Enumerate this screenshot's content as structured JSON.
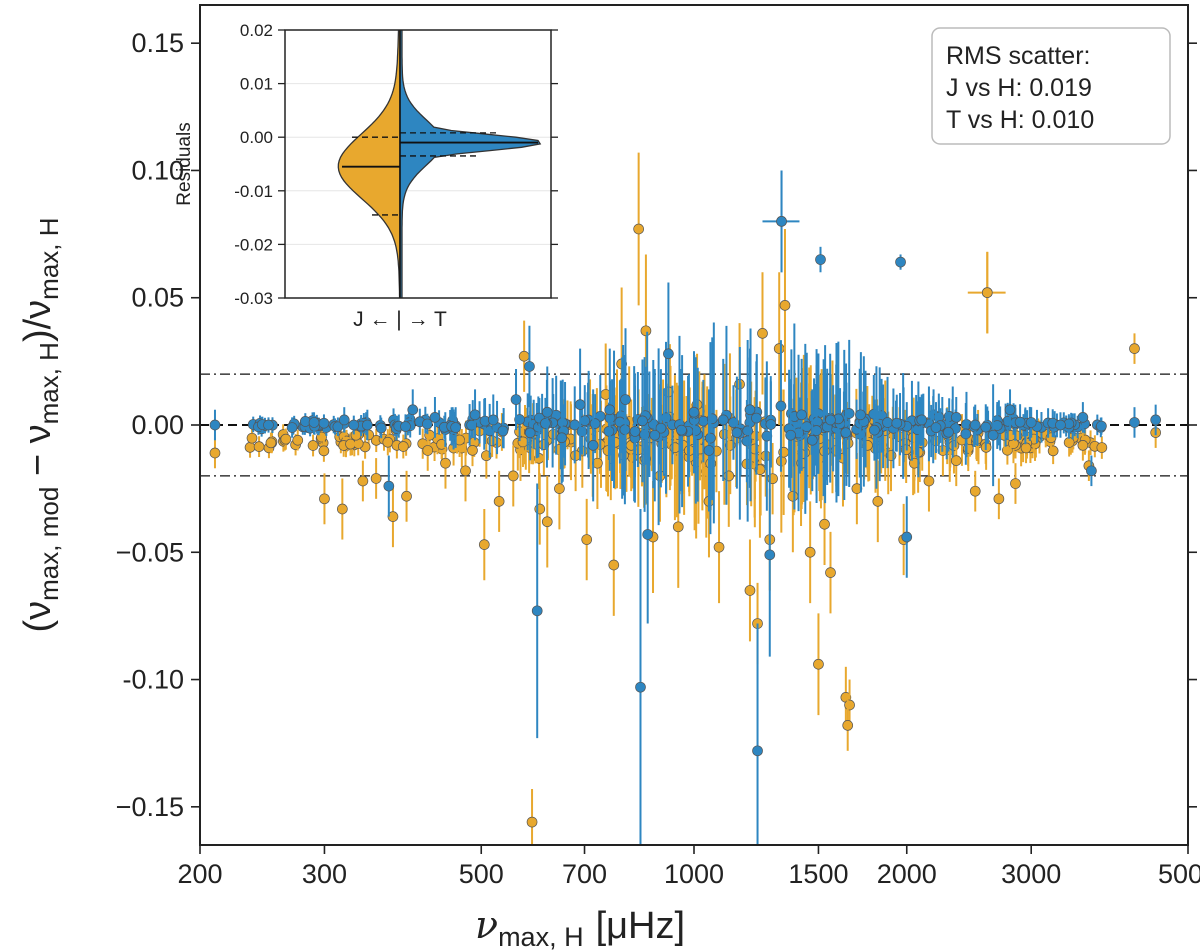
{
  "chart_data": [
    {
      "type": "scatter",
      "xlabel_symbol": "ν",
      "xlabel_sub": "max, H",
      "xlabel_unit": "[μHz]",
      "ylabel_open": "(ν",
      "ylabel_sub1": "max, mod",
      "ylabel_mid": " − ν",
      "ylabel_sub2": "max, H",
      "ylabel_close": ")/ν",
      "ylabel_sub3": "max, H",
      "xscale": "log",
      "xlim": [
        200,
        5000
      ],
      "ylim": [
        -0.165,
        0.165
      ],
      "xticks": [
        200,
        300,
        500,
        700,
        1000,
        1500,
        2000,
        3000,
        5000
      ],
      "xtick_labels": [
        "200",
        "300",
        "500",
        "700",
        "1000",
        "1500",
        "2000",
        "3000",
        "5000"
      ],
      "yticks": [
        -0.15,
        -0.1,
        -0.05,
        0.0,
        0.05,
        0.1,
        0.15
      ],
      "ytick_labels": [
        "−0.15",
        "-0.10",
        "−0.05",
        "0.00",
        "0.05",
        "0.10",
        "0.15"
      ],
      "reference_lines": {
        "zero": 0.0,
        "upper": 0.02,
        "lower": -0.02
      },
      "series": [
        {
          "name": "J",
          "color": "#E8A82E",
          "points": [
            {
              "x": 210,
              "y": -0.011,
              "e": 0.006
            },
            {
              "x": 252,
              "y": -0.007,
              "e": 0.004
            },
            {
              "x": 275,
              "y": -0.006,
              "e": 0.004
            },
            {
              "x": 300,
              "y": -0.029,
              "e": 0.01
            },
            {
              "x": 318,
              "y": -0.033,
              "e": 0.012
            },
            {
              "x": 340,
              "y": -0.022,
              "e": 0.008
            },
            {
              "x": 355,
              "y": -0.021,
              "e": 0.008
            },
            {
              "x": 375,
              "y": -0.036,
              "e": 0.012
            },
            {
              "x": 392,
              "y": -0.028,
              "e": 0.01
            },
            {
              "x": 420,
              "y": -0.01,
              "e": 0.008
            },
            {
              "x": 445,
              "y": -0.015,
              "e": 0.01
            },
            {
              "x": 475,
              "y": -0.018,
              "e": 0.012
            },
            {
              "x": 505,
              "y": -0.047,
              "e": 0.014
            },
            {
              "x": 530,
              "y": -0.03,
              "e": 0.012
            },
            {
              "x": 555,
              "y": -0.02,
              "e": 0.012
            },
            {
              "x": 575,
              "y": 0.027,
              "e": 0.014
            },
            {
              "x": 590,
              "y": -0.156,
              "e": 0.013
            },
            {
              "x": 605,
              "y": -0.033,
              "e": 0.014
            },
            {
              "x": 620,
              "y": -0.038,
              "e": 0.018
            },
            {
              "x": 645,
              "y": -0.025,
              "e": 0.016
            },
            {
              "x": 680,
              "y": -0.012,
              "e": 0.014
            },
            {
              "x": 705,
              "y": -0.045,
              "e": 0.016
            },
            {
              "x": 730,
              "y": -0.015,
              "e": 0.018
            },
            {
              "x": 750,
              "y": 0.012,
              "e": 0.02
            },
            {
              "x": 770,
              "y": -0.055,
              "e": 0.02
            },
            {
              "x": 790,
              "y": 0.024,
              "e": 0.03
            },
            {
              "x": 815,
              "y": -0.008,
              "e": 0.018
            },
            {
              "x": 835,
              "y": 0.077,
              "e": 0.03
            },
            {
              "x": 855,
              "y": 0.037,
              "e": 0.03
            },
            {
              "x": 875,
              "y": -0.044,
              "e": 0.022
            },
            {
              "x": 895,
              "y": -0.02,
              "e": 0.018
            },
            {
              "x": 920,
              "y": 0.013,
              "e": 0.02
            },
            {
              "x": 950,
              "y": -0.04,
              "e": 0.024
            },
            {
              "x": 985,
              "y": -0.01,
              "e": 0.018
            },
            {
              "x": 1010,
              "y": 0.008,
              "e": 0.02
            },
            {
              "x": 1050,
              "y": -0.03,
              "e": 0.022
            },
            {
              "x": 1085,
              "y": -0.048,
              "e": 0.022
            },
            {
              "x": 1120,
              "y": -0.02,
              "e": 0.02
            },
            {
              "x": 1160,
              "y": 0.016,
              "e": 0.024
            },
            {
              "x": 1200,
              "y": -0.065,
              "e": 0.02
            },
            {
              "x": 1230,
              "y": -0.078,
              "e": 0.016
            },
            {
              "x": 1250,
              "y": 0.036,
              "e": 0.024
            },
            {
              "x": 1280,
              "y": -0.045,
              "e": 0.02
            },
            {
              "x": 1320,
              "y": 0.03,
              "e": 0.03
            },
            {
              "x": 1345,
              "y": 0.047,
              "e": 0.03
            },
            {
              "x": 1380,
              "y": -0.028,
              "e": 0.022
            },
            {
              "x": 1420,
              "y": -0.015,
              "e": 0.018
            },
            {
              "x": 1460,
              "y": -0.05,
              "e": 0.02
            },
            {
              "x": 1500,
              "y": -0.094,
              "e": 0.02
            },
            {
              "x": 1530,
              "y": -0.039,
              "e": 0.016
            },
            {
              "x": 1560,
              "y": -0.058,
              "e": 0.016
            },
            {
              "x": 1590,
              "y": -0.01,
              "e": 0.014
            },
            {
              "x": 1640,
              "y": -0.107,
              "e": 0.012
            },
            {
              "x": 1660,
              "y": -0.11,
              "e": 0.01
            },
            {
              "x": 1650,
              "y": -0.118,
              "e": 0.01
            },
            {
              "x": 1700,
              "y": -0.025,
              "e": 0.014
            },
            {
              "x": 1760,
              "y": -0.008,
              "e": 0.012
            },
            {
              "x": 1820,
              "y": -0.03,
              "e": 0.016
            },
            {
              "x": 1900,
              "y": -0.012,
              "e": 0.014
            },
            {
              "x": 1980,
              "y": -0.045,
              "e": 0.014
            },
            {
              "x": 2050,
              "y": -0.015,
              "e": 0.012
            },
            {
              "x": 2150,
              "y": -0.022,
              "e": 0.012
            },
            {
              "x": 2250,
              "y": -0.01,
              "e": 0.01
            },
            {
              "x": 2350,
              "y": -0.014,
              "e": 0.01
            },
            {
              "x": 2500,
              "y": -0.026,
              "e": 0.008
            },
            {
              "x": 2600,
              "y": 0.052,
              "e": 0.016
            },
            {
              "x": 2700,
              "y": -0.029,
              "e": 0.008
            },
            {
              "x": 2850,
              "y": -0.023,
              "e": 0.008
            },
            {
              "x": 2950,
              "y": -0.009,
              "e": 0.006
            },
            {
              "x": 3200,
              "y": -0.005,
              "e": 0.006
            },
            {
              "x": 3550,
              "y": -0.008,
              "e": 0.006
            },
            {
              "x": 3620,
              "y": -0.016,
              "e": 0.006
            },
            {
              "x": 4200,
              "y": 0.03,
              "e": 0.006
            },
            {
              "x": 4500,
              "y": -0.003,
              "e": 0.006
            }
          ]
        },
        {
          "name": "T",
          "color": "#2E86C1",
          "points": [
            {
              "x": 210,
              "y": 0.0,
              "e": 0.006
            },
            {
              "x": 250,
              "y": 0.0,
              "e": 0.003
            },
            {
              "x": 270,
              "y": -0.001,
              "e": 0.004
            },
            {
              "x": 290,
              "y": 0.001,
              "e": 0.004
            },
            {
              "x": 320,
              "y": 0.002,
              "e": 0.005
            },
            {
              "x": 345,
              "y": 0.0,
              "e": 0.006
            },
            {
              "x": 370,
              "y": -0.024,
              "e": 0.012
            },
            {
              "x": 400,
              "y": 0.006,
              "e": 0.008
            },
            {
              "x": 430,
              "y": 0.003,
              "e": 0.008
            },
            {
              "x": 460,
              "y": -0.001,
              "e": 0.008
            },
            {
              "x": 490,
              "y": 0.004,
              "e": 0.01
            },
            {
              "x": 520,
              "y": 0.002,
              "e": 0.01
            },
            {
              "x": 560,
              "y": 0.01,
              "e": 0.012
            },
            {
              "x": 585,
              "y": 0.023,
              "e": 0.016
            },
            {
              "x": 600,
              "y": -0.073,
              "e": 0.05
            },
            {
              "x": 620,
              "y": 0.005,
              "e": 0.018
            },
            {
              "x": 650,
              "y": -0.005,
              "e": 0.018
            },
            {
              "x": 690,
              "y": 0.008,
              "e": 0.022
            },
            {
              "x": 720,
              "y": -0.008,
              "e": 0.022
            },
            {
              "x": 760,
              "y": 0.006,
              "e": 0.024
            },
            {
              "x": 800,
              "y": 0.01,
              "e": 0.028
            },
            {
              "x": 840,
              "y": -0.103,
              "e": 0.07
            },
            {
              "x": 860,
              "y": -0.043,
              "e": 0.035
            },
            {
              "x": 880,
              "y": -0.004,
              "e": 0.026
            },
            {
              "x": 920,
              "y": 0.028,
              "e": 0.028
            },
            {
              "x": 960,
              "y": -0.002,
              "e": 0.024
            },
            {
              "x": 1000,
              "y": 0.005,
              "e": 0.024
            },
            {
              "x": 1050,
              "y": -0.01,
              "e": 0.024
            },
            {
              "x": 1100,
              "y": 0.002,
              "e": 0.024
            },
            {
              "x": 1150,
              "y": -0.003,
              "e": 0.022
            },
            {
              "x": 1200,
              "y": 0.006,
              "e": 0.024
            },
            {
              "x": 1230,
              "y": -0.128,
              "e": 0.05
            },
            {
              "x": 1280,
              "y": -0.051,
              "e": 0.04
            },
            {
              "x": 1330,
              "y": 0.08,
              "e": 0.02
            },
            {
              "x": 1370,
              "y": -0.004,
              "e": 0.022
            },
            {
              "x": 1420,
              "y": 0.004,
              "e": 0.022
            },
            {
              "x": 1470,
              "y": -0.006,
              "e": 0.02
            },
            {
              "x": 1510,
              "y": 0.065,
              "e": 0.005
            },
            {
              "x": 1560,
              "y": 0.002,
              "e": 0.018
            },
            {
              "x": 1640,
              "y": -0.003,
              "e": 0.016
            },
            {
              "x": 1720,
              "y": 0.004,
              "e": 0.014
            },
            {
              "x": 1800,
              "y": -0.002,
              "e": 0.012
            },
            {
              "x": 1960,
              "y": 0.064,
              "e": 0.003
            },
            {
              "x": 2000,
              "y": -0.044,
              "e": 0.016
            },
            {
              "x": 2100,
              "y": 0.002,
              "e": 0.01
            },
            {
              "x": 2200,
              "y": -0.001,
              "e": 0.01
            },
            {
              "x": 2350,
              "y": 0.003,
              "e": 0.008
            },
            {
              "x": 2500,
              "y": 0.0,
              "e": 0.008
            },
            {
              "x": 2650,
              "y": -0.004,
              "e": 0.02
            },
            {
              "x": 2800,
              "y": 0.006,
              "e": 0.008
            },
            {
              "x": 3000,
              "y": 0.001,
              "e": 0.006
            },
            {
              "x": 3300,
              "y": 0.0,
              "e": 0.005
            },
            {
              "x": 3550,
              "y": 0.003,
              "e": 0.006
            },
            {
              "x": 3650,
              "y": -0.018,
              "e": 0.006
            },
            {
              "x": 4200,
              "y": 0.001,
              "e": 0.006
            },
            {
              "x": 4500,
              "y": 0.002,
              "e": 0.006
            }
          ]
        }
      ]
    },
    {
      "type": "violin",
      "role": "inset",
      "ylabel": "Residuals",
      "xlabel": "J ← | → T",
      "ylim": [
        -0.03,
        0.02
      ],
      "yticks": [
        -0.03,
        -0.02,
        -0.01,
        0.0,
        0.01,
        0.02
      ],
      "ytick_labels": [
        "-0.03",
        "-0.02",
        "-0.01",
        "0.00",
        "0.01",
        "0.02"
      ],
      "halves": [
        {
          "name": "J",
          "side": "left",
          "color": "#E8A82E",
          "median": -0.0055,
          "q1": -0.0145,
          "q3": 0.0,
          "min": -0.03,
          "max": 0.02
        },
        {
          "name": "T",
          "side": "right",
          "color": "#2E86C1",
          "median": -0.001,
          "q1": -0.0035,
          "q3": 0.0008,
          "min": -0.03,
          "max": 0.02
        }
      ]
    }
  ],
  "legend": {
    "title": "RMS scatter:",
    "line1": "J vs H: 0.019",
    "line2": "T vs H: 0.010"
  }
}
